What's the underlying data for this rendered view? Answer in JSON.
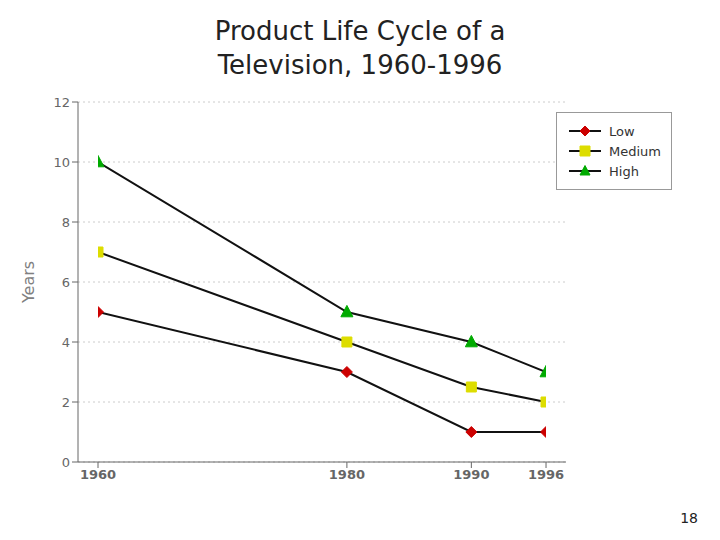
{
  "chart_data": {
    "type": "line",
    "title": "Product Life Cycle of a",
    "subtitle": "Television, 1960-1996",
    "y_label": "Years",
    "x": [
      1960,
      1980,
      1990,
      1996
    ],
    "xlim": [
      1960,
      1996
    ],
    "xticks": [
      1960,
      1980,
      1990,
      1996
    ],
    "ylim": [
      0,
      12
    ],
    "yticks": [
      0,
      2,
      4,
      6,
      8,
      10,
      12
    ],
    "color": "#111111",
    "grid": "y",
    "legend": "upper right",
    "series": [
      {
        "name": "Low",
        "color": "#cc0000",
        "marker": "diamond",
        "values": [
          5,
          3,
          1,
          1
        ]
      },
      {
        "name": "Medium",
        "color": "#dddd00",
        "marker": "square",
        "values": [
          7,
          4,
          2.5,
          2
        ]
      },
      {
        "name": "High",
        "color": "#00aa00",
        "marker": "triangle",
        "values": [
          10,
          5,
          4,
          3
        ]
      }
    ],
    "annotations": [
      "18"
    ]
  }
}
